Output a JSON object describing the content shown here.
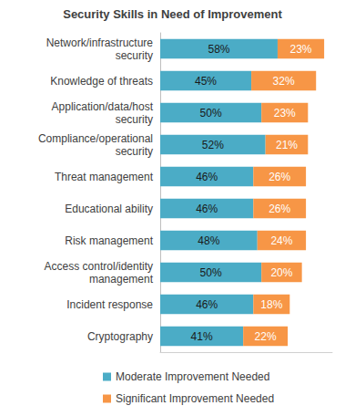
{
  "chart_data": {
    "type": "bar",
    "title": "Security Skills in Need of Improvement",
    "orientation": "horizontal",
    "stacked": true,
    "data_labels": true,
    "legend": "bottom",
    "grid": false,
    "tick_labels": "y",
    "categories": [
      "Network/infrastructure\nsecurity",
      "Knowledge of threats",
      "Application/data/host\nsecurity",
      "Compliance/operational\nsecurity",
      "Threat management",
      "Educational ability",
      "Risk management",
      "Access control/identity\nmanagement",
      "Incident response",
      "Cryptography"
    ],
    "xlim": [
      0,
      85
    ],
    "series": [
      {
        "name": "Moderate Improvement Needed",
        "color": "#4BACC6",
        "values": [
          58,
          45,
          50,
          52,
          46,
          46,
          48,
          50,
          46,
          41
        ],
        "value_labels": [
          "58%",
          "45%",
          "50%",
          "52%",
          "46%",
          "46%",
          "48%",
          "50%",
          "46%",
          "41%"
        ]
      },
      {
        "name": "Significant Improvement Needed",
        "color": "#F79646",
        "values": [
          23,
          32,
          23,
          21,
          26,
          26,
          24,
          20,
          18,
          22
        ],
        "value_labels": [
          "23%",
          "32%",
          "23%",
          "21%",
          "26%",
          "26%",
          "24%",
          "20%",
          "18%",
          "22%"
        ]
      }
    ]
  }
}
